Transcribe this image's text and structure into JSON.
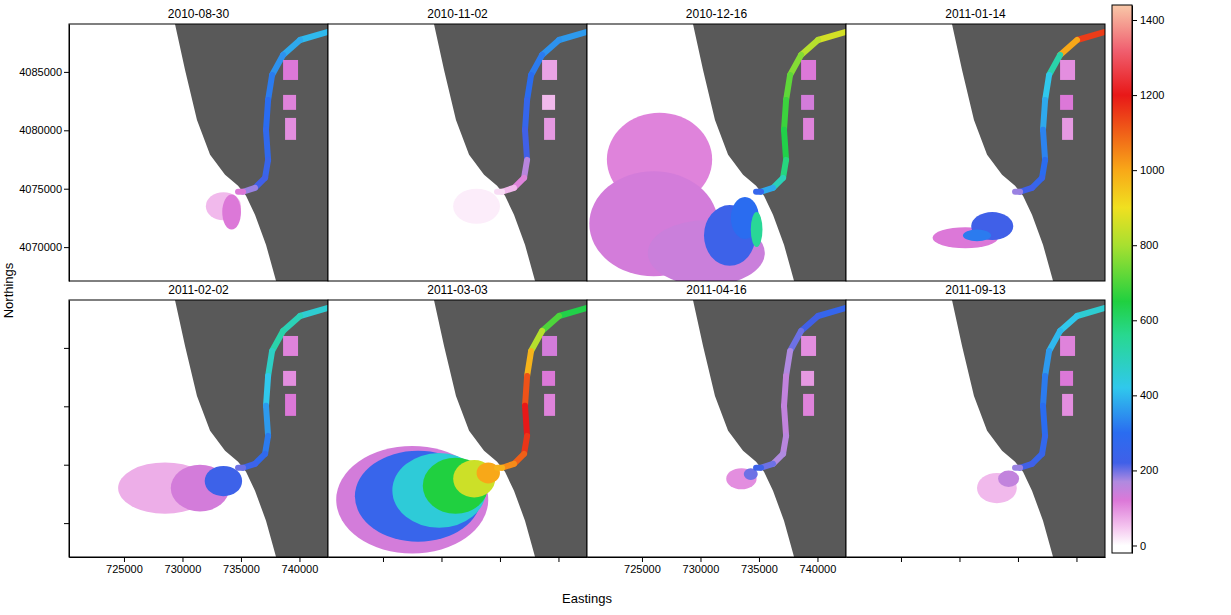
{
  "chart_data": {
    "type": "raster_map",
    "xlabel": "Eastings",
    "ylabel": "Northings",
    "xlim": [
      720300,
      742440
    ],
    "ylim": [
      4067100,
      4089100
    ],
    "xticks": [
      725000,
      730000,
      735000,
      740000
    ],
    "yticks": [
      4070000,
      4075000,
      4080000,
      4085000
    ],
    "colorbar_lim": [
      -20,
      1440
    ],
    "colorbar_ticks": [
      0,
      200,
      400,
      600,
      800,
      1000,
      1200,
      1400
    ],
    "coastline": {
      "x": [
        729360,
        730220,
        731240,
        732360,
        733640,
        734750,
        735430,
        736200,
        737140,
        738000
      ],
      "y": [
        4089100,
        4085170,
        4080890,
        4077900,
        4076190,
        4075250,
        4074390,
        4072770,
        4070210,
        4067100
      ]
    },
    "river": {
      "x": [
        742440,
        740050,
        738600,
        737660,
        737320,
        737140,
        737320,
        737060,
        736200,
        735180,
        734750
      ],
      "y": [
        4088420,
        4087730,
        4086450,
        4084740,
        4082600,
        4080040,
        4077470,
        4075930,
        4075080,
        4074740,
        4074740
      ]
    },
    "ponds": {
      "x0": [
        738600,
        738600,
        738770
      ],
      "x1": [
        739880,
        739710,
        739710
      ],
      "y0": [
        4084310,
        4081750,
        4079180
      ],
      "y1": [
        4086020,
        4083030,
        4081060
      ]
    },
    "panels": [
      {
        "title": "2010-08-30",
        "river_values": [
          400,
          380,
          350,
          320,
          300,
          280,
          250,
          220,
          180,
          120
        ],
        "pond_values": [
          120,
          110,
          100
        ],
        "plume": {
          "x": [
            733500,
            734200
          ],
          "y": [
            4073500,
            4073000
          ],
          "rx": [
            1500,
            800
          ],
          "ry": [
            1200,
            1500
          ],
          "values": [
            60,
            120
          ]
        }
      },
      {
        "title": "2010-11-02",
        "river_values": [
          360,
          350,
          320,
          300,
          260,
          220,
          160,
          110,
          60,
          30
        ],
        "pond_values": [
          80,
          60,
          90
        ],
        "plume": {
          "x": [
            733000
          ],
          "y": [
            4073500
          ],
          "rx": [
            2000
          ],
          "ry": [
            1500
          ],
          "values": [
            15
          ]
        }
      },
      {
        "title": "2010-12-16",
        "river_values": [
          860,
          820,
          760,
          720,
          680,
          640,
          580,
          500,
          380,
          260
        ],
        "pond_values": [
          120,
          130,
          110
        ],
        "plume": {
          "x": [
            726500,
            726000,
            730500,
            732500,
            733800,
            734800
          ],
          "y": [
            4077500,
            4072000,
            4069500,
            4071000,
            4072500,
            4071500
          ],
          "rx": [
            4500,
            5500,
            5000,
            2200,
            1200,
            500
          ],
          "ry": [
            4000,
            4500,
            2800,
            2600,
            1800,
            1500
          ],
          "values": [
            110,
            130,
            140,
            230,
            300,
            550
          ]
        }
      },
      {
        "title": "2011-01-14",
        "river_values": [
          1150,
          1000,
          520,
          420,
          380,
          330,
          300,
          260,
          220,
          180
        ],
        "pond_values": [
          100,
          120,
          90
        ],
        "plume": {
          "x": [
            730500,
            732800,
            731500
          ],
          "y": [
            4070800,
            4071800,
            4071000
          ],
          "rx": [
            2800,
            1800,
            1200
          ],
          "ry": [
            900,
            1200,
            500
          ],
          "values": [
            120,
            220,
            320
          ]
        }
      },
      {
        "title": "2011-02-02",
        "river_values": [
          460,
          500,
          520,
          480,
          420,
          360,
          320,
          280,
          240,
          200
        ],
        "pond_values": [
          110,
          100,
          120
        ],
        "plume": {
          "x": [
            728500,
            731500,
            733500
          ],
          "y": [
            4073000,
            4073000,
            4073600
          ],
          "rx": [
            4000,
            2500,
            1600
          ],
          "ry": [
            2200,
            2000,
            1300
          ],
          "values": [
            70,
            130,
            230
          ]
        }
      },
      {
        "title": "2011-03-03",
        "river_values": [
          640,
          700,
          820,
          980,
          1120,
          1200,
          1160,
          1100,
          1040,
          980
        ],
        "pond_values": [
          130,
          120,
          110
        ],
        "plume": {
          "x": [
            727500,
            728000,
            729800,
            731200,
            732800,
            734000
          ],
          "y": [
            4072000,
            4072300,
            4072800,
            4073200,
            4073800,
            4074300
          ],
          "rx": [
            6500,
            5400,
            4000,
            2800,
            1800,
            1000
          ],
          "ry": [
            4600,
            3900,
            3200,
            2400,
            1600,
            900
          ],
          "values": [
            130,
            250,
            450,
            650,
            850,
            1000
          ]
        }
      },
      {
        "title": "2011-04-16",
        "river_values": [
          260,
          220,
          200,
          170,
          150,
          150,
          160,
          170,
          200,
          230
        ],
        "pond_values": [
          100,
          90,
          110
        ],
        "plume": {
          "x": [
            733500,
            734300
          ],
          "y": [
            4073800,
            4074200
          ],
          "rx": [
            1300,
            600
          ],
          "ry": [
            900,
            500
          ],
          "values": [
            100,
            200
          ]
        }
      },
      {
        "title": "2011-09-13",
        "river_values": [
          460,
          420,
          400,
          360,
          320,
          300,
          270,
          250,
          220,
          180
        ],
        "pond_values": [
          110,
          120,
          100
        ],
        "plume": {
          "x": [
            733200,
            734200
          ],
          "y": [
            4073000,
            4073800
          ],
          "rx": [
            1700,
            900
          ],
          "ry": [
            1300,
            700
          ],
          "values": [
            60,
            150
          ]
        }
      }
    ]
  }
}
